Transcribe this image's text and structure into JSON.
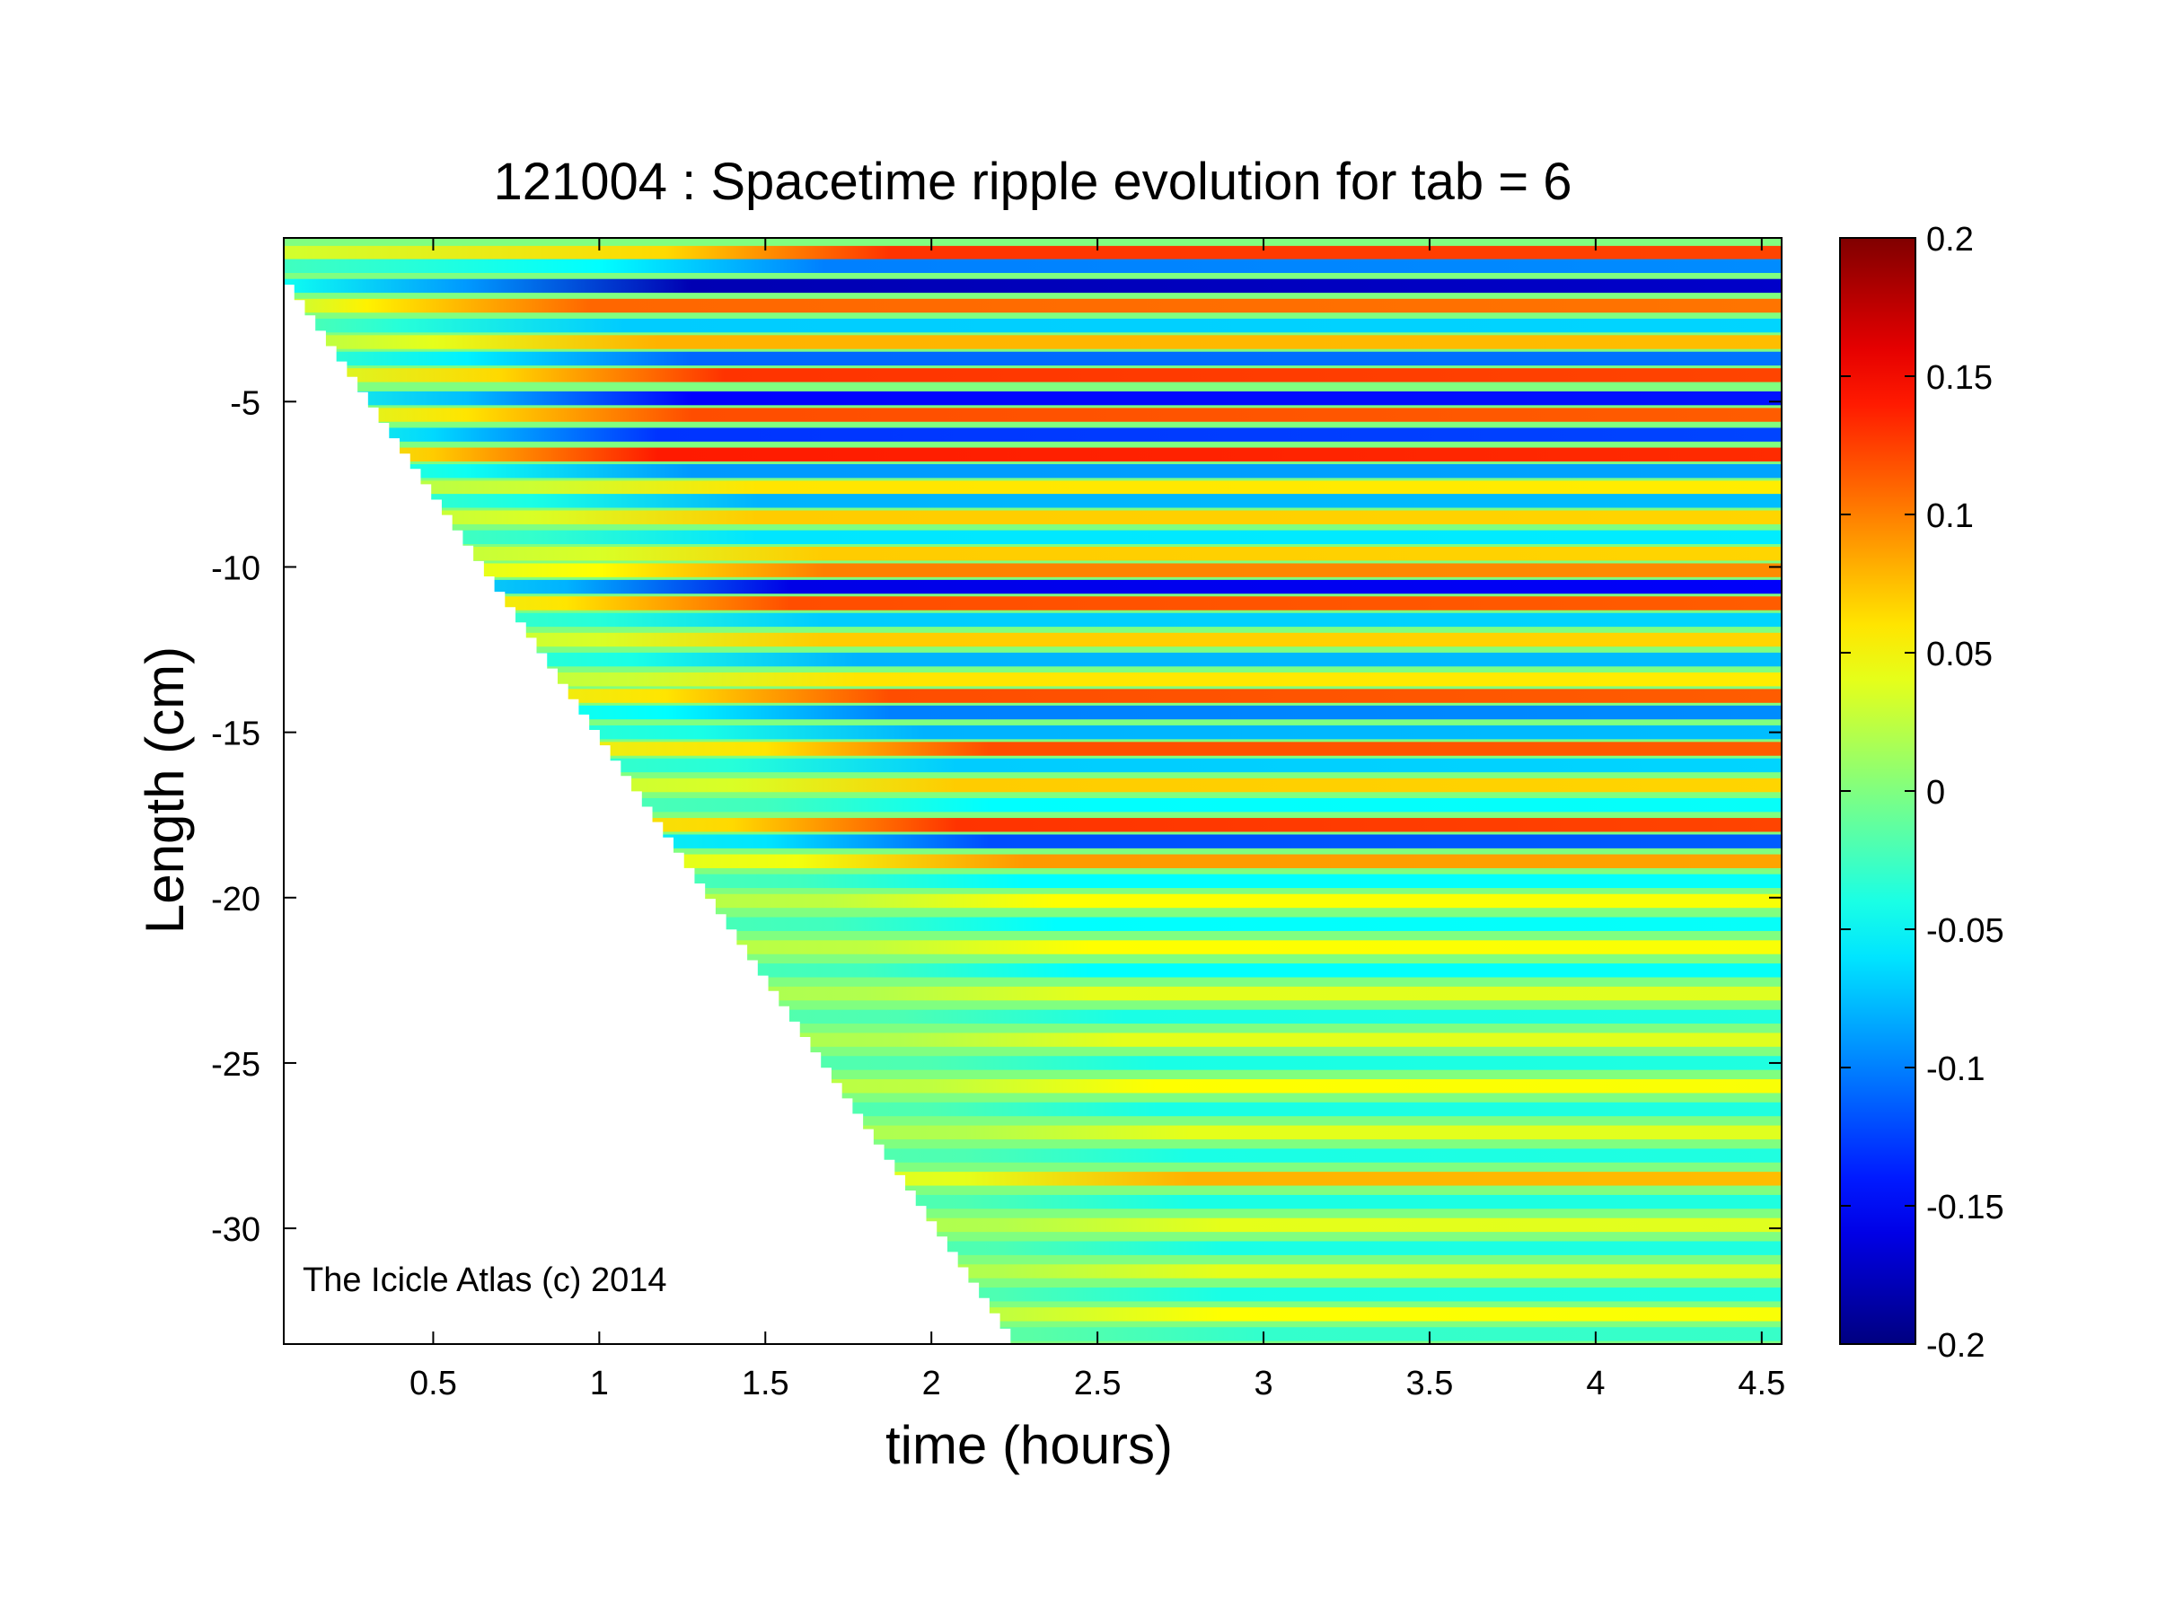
{
  "chart_data": {
    "type": "heatmap",
    "title": "121004 : Spacetime ripple evolution for tab = 6",
    "xlabel": "time (hours)",
    "ylabel": "Length (cm)",
    "xlim": [
      0.05,
      4.56
    ],
    "ylim": [
      -33.5,
      -0.05
    ],
    "xticks": [
      0.5,
      1,
      1.5,
      2,
      2.5,
      3,
      3.5,
      4,
      4.5
    ],
    "xtick_labels": [
      "0.5",
      "1",
      "1.5",
      "2",
      "2.5",
      "3",
      "3.5",
      "4",
      "4.5"
    ],
    "yticks": [
      -5,
      -10,
      -15,
      -20,
      -25,
      -30
    ],
    "ytick_labels": [
      "-5",
      "-10",
      "-15",
      "-20",
      "-25",
      "-30"
    ],
    "colorbar": {
      "min": -0.2,
      "max": 0.2,
      "colormap": "jet",
      "ticks": [
        0.2,
        0.15,
        0.1,
        0.05,
        0,
        -0.05,
        -0.1,
        -0.15,
        -0.2
      ],
      "tick_labels": [
        "0.2",
        "0.15",
        "0.1",
        "0.05",
        "0",
        "-0.05",
        "-0.1",
        "-0.15",
        "-0.2"
      ]
    },
    "front": {
      "description": "growth front: data exists only below the line from (0.05, -1) to (2.27, -33.5)",
      "points": [
        [
          0.05,
          -1.0
        ],
        [
          2.27,
          -33.5
        ]
      ]
    },
    "bands": [
      {
        "y": -0.5,
        "amp": 0.13,
        "t0": 1.2
      },
      {
        "y": -0.9,
        "amp": -0.1,
        "t0": 1.0
      },
      {
        "y": -1.5,
        "amp": -0.18,
        "t0": 0.6
      },
      {
        "y": -2.1,
        "amp": 0.11,
        "t0": 0.3
      },
      {
        "y": -2.7,
        "amp": -0.07,
        "t0": 0.4
      },
      {
        "y": -3.2,
        "amp": 0.08,
        "t0": 0.5
      },
      {
        "y": -3.7,
        "amp": -0.11,
        "t0": 0.6
      },
      {
        "y": -4.2,
        "amp": 0.13,
        "t0": 0.7
      },
      {
        "y": -4.9,
        "amp": -0.15,
        "t0": 0.6
      },
      {
        "y": -5.4,
        "amp": 0.12,
        "t0": 0.6
      },
      {
        "y": -6.0,
        "amp": -0.13,
        "t0": 0.5
      },
      {
        "y": -6.6,
        "amp": 0.14,
        "t0": 0.5
      },
      {
        "y": -7.1,
        "amp": -0.09,
        "t0": 0.6
      },
      {
        "y": -7.6,
        "amp": 0.06,
        "t0": 0.8
      },
      {
        "y": -8.0,
        "amp": -0.08,
        "t0": 0.8
      },
      {
        "y": -8.5,
        "amp": 0.07,
        "t0": 0.8
      },
      {
        "y": -9.1,
        "amp": -0.06,
        "t0": 0.8
      },
      {
        "y": -9.6,
        "amp": 0.07,
        "t0": 1.0
      },
      {
        "y": -10.1,
        "amp": 0.1,
        "t0": 1.0
      },
      {
        "y": -10.6,
        "amp": -0.16,
        "t0": 0.9
      },
      {
        "y": -11.1,
        "amp": 0.12,
        "t0": 0.9
      },
      {
        "y": -11.6,
        "amp": -0.07,
        "t0": 1.0
      },
      {
        "y": -12.2,
        "amp": 0.07,
        "t0": 1.0
      },
      {
        "y": -12.8,
        "amp": -0.08,
        "t0": 1.1
      },
      {
        "y": -13.4,
        "amp": 0.06,
        "t0": 1.1
      },
      {
        "y": -13.9,
        "amp": 0.12,
        "t0": 1.2
      },
      {
        "y": -14.4,
        "amp": -0.1,
        "t0": 1.2
      },
      {
        "y": -15.0,
        "amp": -0.08,
        "t0": 1.3
      },
      {
        "y": -15.5,
        "amp": 0.12,
        "t0": 1.5
      },
      {
        "y": -16.0,
        "amp": -0.07,
        "t0": 1.4
      },
      {
        "y": -16.6,
        "amp": 0.07,
        "t0": 1.4
      },
      {
        "y": -17.2,
        "amp": -0.05,
        "t0": 1.5
      },
      {
        "y": -17.8,
        "amp": 0.13,
        "t0": 1.4
      },
      {
        "y": -18.3,
        "amp": -0.12,
        "t0": 1.5
      },
      {
        "y": -18.9,
        "amp": 0.09,
        "t0": 1.6
      },
      {
        "y": -19.5,
        "amp": -0.05,
        "t0": 1.6
      },
      {
        "y": -20.1,
        "amp": 0.05,
        "t0": 1.7
      },
      {
        "y": -20.8,
        "amp": -0.05,
        "t0": 1.7
      },
      {
        "y": -21.5,
        "amp": 0.05,
        "t0": 1.8
      },
      {
        "y": -22.2,
        "amp": -0.05,
        "t0": 1.8
      },
      {
        "y": -22.9,
        "amp": 0.04,
        "t0": 1.8
      },
      {
        "y": -23.6,
        "amp": -0.04,
        "t0": 1.9
      },
      {
        "y": -24.3,
        "amp": 0.04,
        "t0": 1.9
      },
      {
        "y": -25.0,
        "amp": -0.04,
        "t0": 2.0
      },
      {
        "y": -25.7,
        "amp": 0.05,
        "t0": 2.0
      },
      {
        "y": -26.4,
        "amp": -0.04,
        "t0": 2.0
      },
      {
        "y": -27.1,
        "amp": 0.04,
        "t0": 2.1
      },
      {
        "y": -27.8,
        "amp": -0.04,
        "t0": 2.1
      },
      {
        "y": -28.5,
        "amp": 0.08,
        "t0": 2.1
      },
      {
        "y": -29.2,
        "amp": -0.04,
        "t0": 2.1
      },
      {
        "y": -29.9,
        "amp": 0.04,
        "t0": 2.2
      },
      {
        "y": -30.6,
        "amp": -0.04,
        "t0": 2.2
      },
      {
        "y": -31.3,
        "amp": 0.04,
        "t0": 2.2
      },
      {
        "y": -32.0,
        "amp": -0.04,
        "t0": 2.2
      },
      {
        "y": -32.6,
        "amp": 0.05,
        "t0": 2.2
      },
      {
        "y": -33.2,
        "amp": -0.03,
        "t0": 2.3
      }
    ],
    "annotation": "The Icicle Atlas (c) 2014"
  }
}
